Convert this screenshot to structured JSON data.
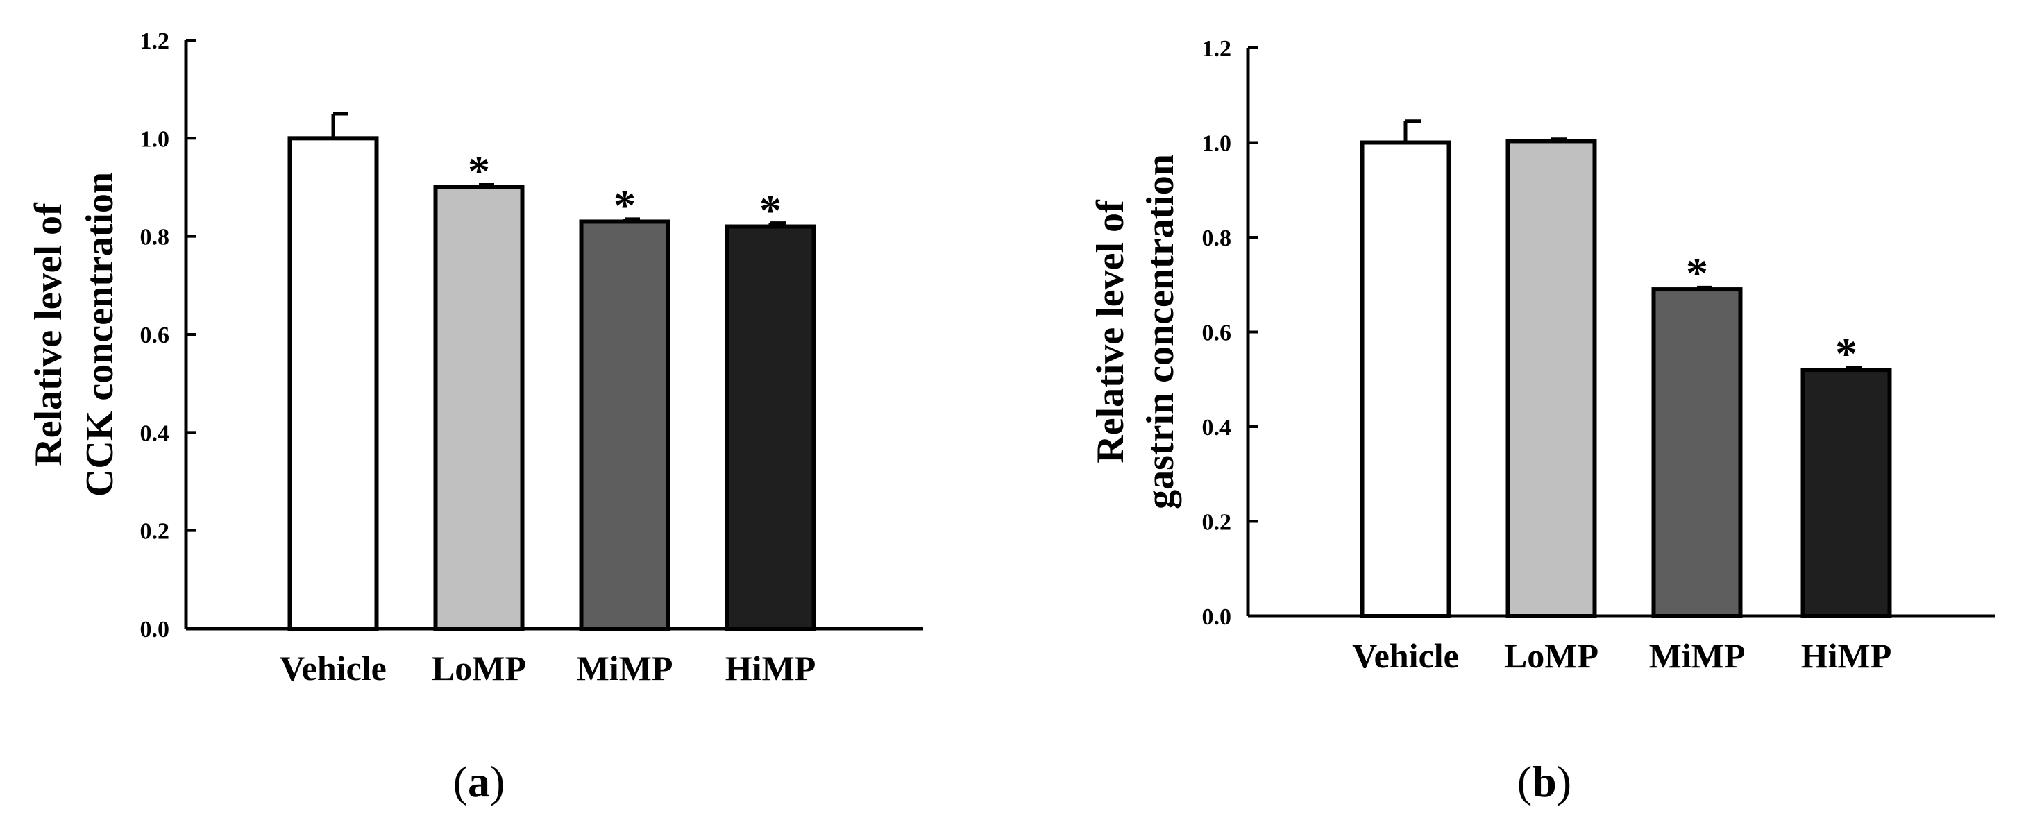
{
  "chart_data": [
    {
      "type": "bar",
      "panel_label": "a",
      "categories": [
        "Vehicle",
        "LoMP",
        "MiMP",
        "HiMP"
      ],
      "values": [
        1.0,
        0.9,
        0.83,
        0.82
      ],
      "errors": [
        0.05,
        0.005,
        0.005,
        0.007
      ],
      "significance": [
        "",
        "*",
        "*",
        "*"
      ],
      "bar_colors": [
        "#ffffff",
        "#c0c0c0",
        "#5e5e5e",
        "#1f1f1f"
      ],
      "ylabel_lines": [
        "Relative level of",
        "CCK concentration"
      ],
      "ylim": [
        0,
        1.2
      ],
      "yticks": [
        "0.0",
        "0.2",
        "0.4",
        "0.6",
        "0.8",
        "1.0",
        "1.2"
      ],
      "grid": false
    },
    {
      "type": "bar",
      "panel_label": "b",
      "categories": [
        "Vehicle",
        "LoMP",
        "MiMP",
        "HiMP"
      ],
      "values": [
        1.0,
        1.003,
        0.69,
        0.52
      ],
      "errors": [
        0.045,
        0.004,
        0.004,
        0.004
      ],
      "significance": [
        "",
        "",
        "*",
        "*"
      ],
      "bar_colors": [
        "#ffffff",
        "#c0c0c0",
        "#5e5e5e",
        "#1f1f1f"
      ],
      "ylabel_lines": [
        "Relative level of",
        "gastrin concentration"
      ],
      "ylim": [
        0,
        1.2
      ],
      "yticks": [
        "0.0",
        "0.2",
        "0.4",
        "0.6",
        "0.8",
        "1.0",
        "1.2"
      ],
      "grid": false
    }
  ]
}
